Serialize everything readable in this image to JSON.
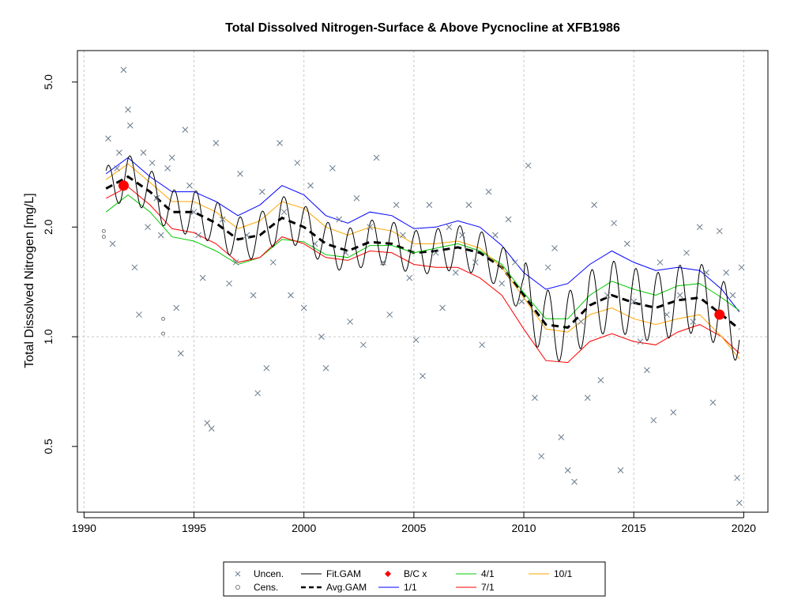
{
  "chart_data": {
    "type": "scatter",
    "title": "Total Dissolved Nitrogen-Surface & Above Pycnocline at XFB1986",
    "xlabel": "",
    "ylabel": "Total Dissolved Nitrogen [mg/L]",
    "y_scale": "log",
    "xlim": [
      1989.7,
      2021.1
    ],
    "ylim": [
      0.33,
      6.1
    ],
    "x_ticks": [
      1990,
      1995,
      2000,
      2005,
      2010,
      2015,
      2020
    ],
    "y_ticks": [
      0.5,
      1.0,
      2.0,
      5.0
    ],
    "x_tick_labels": [
      "1990",
      "1995",
      "2000",
      "2005",
      "2010",
      "2015",
      "2020"
    ],
    "y_tick_labels": [
      "0.5",
      "1.0",
      "2.0",
      "5.0"
    ],
    "grid": true,
    "reference_line_y": 1.0,
    "legend": {
      "position": "bottom",
      "entries": [
        {
          "label": "Uncen.",
          "marker": "x",
          "color": "#6b7b8c"
        },
        {
          "label": "Cens.",
          "marker": "circle-open",
          "color": "#777777"
        },
        {
          "label": "Fit.GAM",
          "marker": "line",
          "color": "#000000"
        },
        {
          "label": "Avg.GAM",
          "marker": "dashed-line",
          "color": "#000000"
        },
        {
          "label": "B/C x",
          "marker": "diamond",
          "color": "#ff0000"
        },
        {
          "label": "1/1",
          "marker": "line",
          "color": "#0000ff"
        },
        {
          "label": "4/1",
          "marker": "line",
          "color": "#00c800"
        },
        {
          "label": "7/1",
          "marker": "line",
          "color": "#ff0000"
        },
        {
          "label": "10/1",
          "marker": "line",
          "color": "#ffa500"
        }
      ]
    },
    "series": [
      {
        "name": "Avg.GAM",
        "style": "dashed",
        "color": "#000000",
        "x": [
          1991.0,
          1992.0,
          1993.0,
          1994.0,
          1995.0,
          1996.0,
          1997.0,
          1998.0,
          1999.0,
          2000.0,
          2001.0,
          2002.0,
          2003.0,
          2004.0,
          2005.0,
          2006.0,
          2007.0,
          2008.0,
          2009.0,
          2010.0,
          2011.0,
          2012.0,
          2013.0,
          2014.0,
          2015.0,
          2016.0,
          2017.0,
          2018.0,
          2019.0,
          2019.8
        ],
        "y": [
          2.55,
          2.75,
          2.5,
          2.2,
          2.2,
          2.05,
          1.85,
          1.9,
          2.12,
          2.0,
          1.8,
          1.72,
          1.82,
          1.8,
          1.7,
          1.72,
          1.76,
          1.7,
          1.55,
          1.3,
          1.08,
          1.06,
          1.22,
          1.3,
          1.24,
          1.2,
          1.26,
          1.28,
          1.15,
          1.05
        ]
      },
      {
        "name": "1/1",
        "color": "#0000ff",
        "x": [
          1991.0,
          1992.0,
          1993.0,
          1994.0,
          1995.0,
          1996.0,
          1997.0,
          1998.0,
          1999.0,
          2000.0,
          2001.0,
          2002.0,
          2003.0,
          2004.0,
          2005.0,
          2006.0,
          2007.0,
          2008.0,
          2009.0,
          2010.0,
          2011.0,
          2012.0,
          2013.0,
          2014.0,
          2015.0,
          2016.0,
          2017.0,
          2018.0,
          2019.0,
          2019.8
        ],
        "y": [
          2.8,
          3.1,
          2.75,
          2.5,
          2.5,
          2.35,
          2.15,
          2.3,
          2.6,
          2.45,
          2.15,
          2.05,
          2.2,
          2.15,
          1.98,
          2.0,
          2.08,
          2.0,
          1.78,
          1.5,
          1.35,
          1.4,
          1.58,
          1.72,
          1.6,
          1.52,
          1.55,
          1.52,
          1.35,
          1.17
        ]
      },
      {
        "name": "4/1",
        "color": "#00c800",
        "x": [
          1991.0,
          1992.0,
          1993.0,
          1994.0,
          1995.0,
          1996.0,
          1997.0,
          1998.0,
          1999.0,
          2000.0,
          2001.0,
          2002.0,
          2003.0,
          2004.0,
          2005.0,
          2006.0,
          2007.0,
          2008.0,
          2009.0,
          2010.0,
          2011.0,
          2012.0,
          2013.0,
          2014.0,
          2015.0,
          2016.0,
          2017.0,
          2018.0,
          2019.0,
          2019.8
        ],
        "y": [
          2.2,
          2.45,
          2.2,
          1.88,
          1.83,
          1.72,
          1.58,
          1.65,
          1.85,
          1.82,
          1.68,
          1.65,
          1.78,
          1.78,
          1.7,
          1.75,
          1.8,
          1.72,
          1.58,
          1.32,
          1.12,
          1.12,
          1.3,
          1.42,
          1.35,
          1.3,
          1.38,
          1.4,
          1.28,
          1.18
        ]
      },
      {
        "name": "7/1",
        "color": "#ff0000",
        "x": [
          1991.0,
          1992.0,
          1993.0,
          1994.0,
          1995.0,
          1996.0,
          1997.0,
          1998.0,
          1999.0,
          2000.0,
          2001.0,
          2002.0,
          2003.0,
          2004.0,
          2005.0,
          2006.0,
          2007.0,
          2008.0,
          2009.0,
          2010.0,
          2011.0,
          2012.0,
          2013.0,
          2014.0,
          2015.0,
          2016.0,
          2017.0,
          2018.0,
          2019.0,
          2019.8
        ],
        "y": [
          2.4,
          2.58,
          2.3,
          1.98,
          1.93,
          1.8,
          1.6,
          1.65,
          1.88,
          1.8,
          1.65,
          1.62,
          1.72,
          1.7,
          1.58,
          1.55,
          1.55,
          1.45,
          1.3,
          1.05,
          0.86,
          0.85,
          0.97,
          1.02,
          0.97,
          0.95,
          1.03,
          1.08,
          1.0,
          0.9
        ]
      },
      {
        "name": "10/1",
        "color": "#ffa500",
        "x": [
          1991.0,
          1992.0,
          1993.0,
          1994.0,
          1995.0,
          1996.0,
          1997.0,
          1998.0,
          1999.0,
          2000.0,
          2001.0,
          2002.0,
          2003.0,
          2004.0,
          2005.0,
          2006.0,
          2007.0,
          2008.0,
          2009.0,
          2010.0,
          2011.0,
          2012.0,
          2013.0,
          2014.0,
          2015.0,
          2016.0,
          2017.0,
          2018.0,
          2019.0,
          2019.8
        ],
        "y": [
          2.7,
          2.98,
          2.65,
          2.35,
          2.35,
          2.2,
          1.98,
          2.08,
          2.35,
          2.25,
          2.0,
          1.9,
          2.0,
          1.95,
          1.8,
          1.8,
          1.83,
          1.75,
          1.55,
          1.28,
          1.05,
          1.03,
          1.15,
          1.2,
          1.12,
          1.08,
          1.12,
          1.15,
          1.0,
          0.87
        ]
      },
      {
        "name": "B/C x",
        "color": "#ff0000",
        "marker": "filled-circle",
        "x": [
          1991.8,
          2018.9
        ],
        "y": [
          2.6,
          1.15
        ]
      },
      {
        "name": "Cens.",
        "color": "#777777",
        "marker": "circle-open",
        "x": [
          1990.9,
          1990.9,
          1993.6,
          1993.6
        ],
        "y": [
          1.88,
          1.95,
          1.02,
          1.12
        ]
      },
      {
        "name": "Uncen.",
        "color": "#6b7b8c",
        "marker": "x",
        "x": [
          1991.1,
          1991.3,
          1991.5,
          1991.6,
          1991.8,
          1992.0,
          1992.1,
          1992.3,
          1992.5,
          1992.7,
          1992.9,
          1993.1,
          1993.3,
          1993.5,
          1993.8,
          1994.0,
          1994.2,
          1994.4,
          1994.6,
          1994.8,
          1995.0,
          1995.2,
          1995.4,
          1995.6,
          1995.8,
          1996.0,
          1996.3,
          1996.6,
          1996.9,
          1997.1,
          1997.4,
          1997.7,
          1997.9,
          1998.1,
          1998.3,
          1998.6,
          1998.9,
          1999.1,
          1999.4,
          1999.7,
          2000.0,
          2000.3,
          2000.5,
          2000.8,
          2001.0,
          2001.3,
          2001.6,
          2001.9,
          2002.1,
          2002.4,
          2002.7,
          2003.0,
          2003.3,
          2003.6,
          2003.9,
          2004.2,
          2004.5,
          2004.8,
          2005.1,
          2005.4,
          2005.7,
          2006.0,
          2006.3,
          2006.6,
          2006.9,
          2007.2,
          2007.5,
          2007.8,
          2008.1,
          2008.4,
          2008.7,
          2009.0,
          2009.3,
          2009.6,
          2009.9,
          2010.2,
          2010.5,
          2010.8,
          2011.1,
          2011.4,
          2011.7,
          2012.0,
          2012.3,
          2012.6,
          2012.9,
          2013.2,
          2013.5,
          2013.8,
          2014.1,
          2014.4,
          2014.7,
          2015.0,
          2015.3,
          2015.6,
          2015.9,
          2016.2,
          2016.5,
          2016.8,
          2017.1,
          2017.4,
          2017.7,
          2018.0,
          2018.3,
          2018.6,
          2018.9,
          2019.2,
          2019.5,
          2019.7,
          2019.8,
          2019.9
        ],
        "y": [
          3.5,
          1.8,
          2.9,
          3.2,
          5.4,
          4.2,
          3.8,
          1.55,
          1.15,
          3.2,
          2.0,
          3.0,
          2.4,
          1.9,
          2.9,
          3.1,
          1.2,
          0.9,
          3.7,
          2.6,
          2.2,
          1.9,
          1.45,
          0.58,
          0.56,
          3.4,
          2.1,
          1.4,
          1.6,
          2.8,
          1.9,
          1.3,
          0.7,
          2.5,
          0.82,
          1.6,
          3.4,
          2.2,
          1.3,
          3.0,
          1.2,
          2.6,
          1.8,
          1.0,
          0.82,
          2.9,
          2.1,
          1.7,
          1.1,
          2.4,
          0.95,
          2.0,
          3.1,
          1.6,
          1.15,
          2.3,
          1.9,
          1.45,
          0.98,
          0.78,
          2.3,
          1.7,
          1.2,
          2.0,
          1.5,
          1.9,
          2.3,
          1.6,
          0.95,
          2.5,
          1.9,
          1.4,
          2.1,
          1.6,
          1.25,
          2.95,
          0.68,
          0.47,
          1.55,
          1.75,
          0.53,
          0.43,
          0.4,
          1.1,
          0.68,
          2.3,
          0.76,
          1.3,
          2.05,
          0.43,
          1.8,
          1.25,
          0.97,
          0.81,
          0.59,
          1.6,
          1.15,
          0.62,
          1.3,
          1.7,
          1.1,
          2.0,
          1.5,
          0.66,
          1.95,
          1.5,
          1.3,
          0.41,
          0.35,
          1.55
        ]
      }
    ]
  }
}
